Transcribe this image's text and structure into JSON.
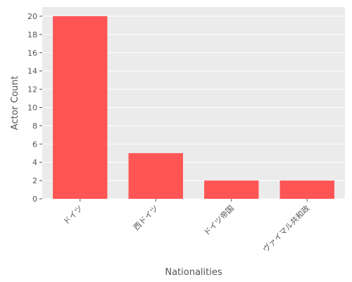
{
  "chart_data": {
    "type": "bar",
    "title": "",
    "xlabel": "Nationalities",
    "ylabel": "Actor Count",
    "categories": [
      "ドイツ",
      "西ドイツ",
      "ドイツ帝国",
      "ヴァイマル共和政"
    ],
    "values": [
      20,
      5,
      2,
      2
    ],
    "ylim": [
      0,
      21
    ],
    "yticks": [
      0,
      2,
      4,
      6,
      8,
      10,
      12,
      14,
      16,
      18,
      20
    ],
    "grid": true,
    "legend": "none",
    "colors": {
      "bar": "#ff5555",
      "panel": "#ebebeb",
      "grid": "#ffffff",
      "text": "#555555"
    }
  }
}
